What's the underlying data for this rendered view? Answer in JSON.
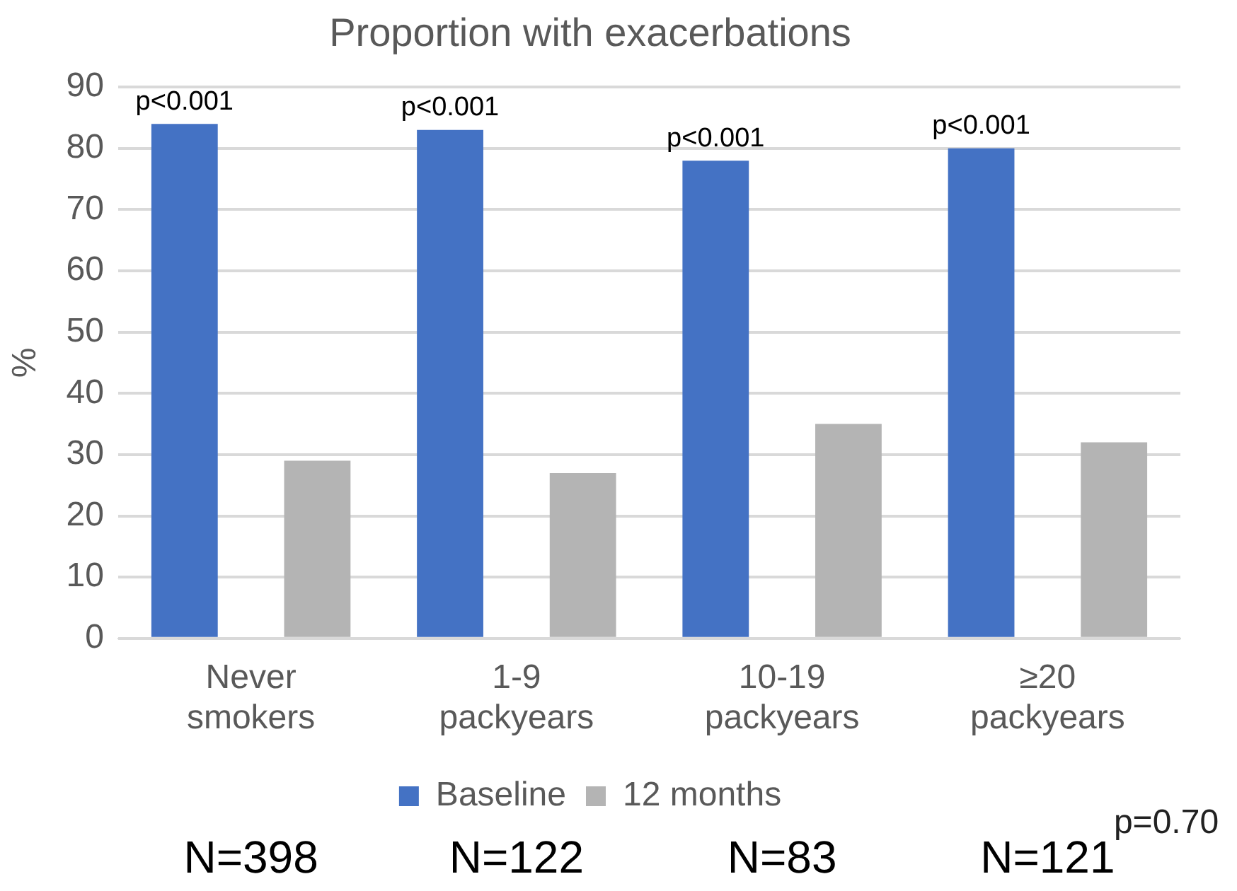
{
  "chart_data": {
    "type": "bar",
    "title": "Proportion with exacerbations",
    "ylabel": "%",
    "categories": [
      "Never smokers",
      "1-9 packyears",
      "10-19 packyears",
      "≥20 packyears"
    ],
    "series": [
      {
        "name": "Baseline",
        "color": "#4472c4",
        "values": [
          84,
          83,
          78,
          80
        ]
      },
      {
        "name": "12 months",
        "color": "#b4b4b4",
        "values": [
          29,
          27,
          35,
          32
        ]
      }
    ],
    "ylim": [
      0,
      90
    ],
    "yticks": [
      0,
      10,
      20,
      30,
      40,
      50,
      60,
      70,
      80,
      90
    ],
    "grid": "y",
    "legend": "bottom",
    "annotations": [
      "p<0.001",
      "p<0.001",
      "p<0.001",
      "p<0.001",
      "p=0.70",
      "N=398",
      "N=122",
      "N=83",
      "N=121"
    ]
  }
}
